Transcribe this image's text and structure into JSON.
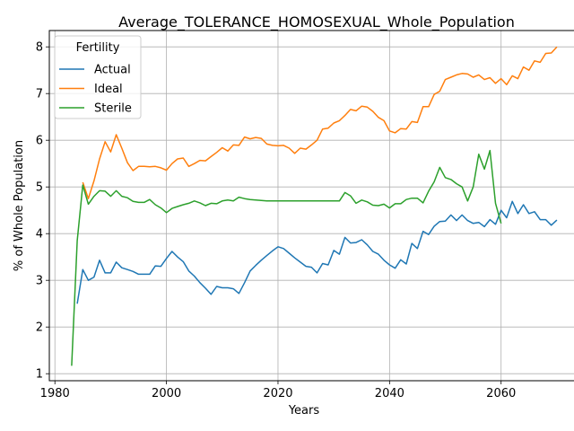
{
  "chart_data": {
    "type": "line",
    "title": "Average_TOLERANCE_HOMOSEXUAL_Whole_Population",
    "xlabel": "Years",
    "ylabel": "% of Whole Population",
    "xlim": [
      1979,
      2075
    ],
    "ylim": [
      0.85,
      8.35
    ],
    "xticks": [
      1980,
      2000,
      2020,
      2040,
      2060
    ],
    "yticks": [
      1,
      2,
      3,
      4,
      5,
      6,
      7,
      8
    ],
    "grid": true,
    "legend": {
      "title": "Fertility",
      "placement": "top-left"
    },
    "series": [
      {
        "name": "Actual",
        "color": "#1f77b4",
        "x": [
          1984,
          1985,
          1986,
          1987,
          1988,
          1989,
          1990,
          1991,
          1992,
          1993,
          1994,
          1995,
          1996,
          1997,
          1998,
          1999,
          2000,
          2001,
          2002,
          2003,
          2004,
          2005,
          2006,
          2007,
          2008,
          2009,
          2010,
          2011,
          2012,
          2013,
          2014,
          2015,
          2016,
          2017,
          2018,
          2019,
          2020,
          2021,
          2022,
          2023,
          2024,
          2025,
          2026,
          2027,
          2028,
          2029,
          2030,
          2031,
          2032,
          2033,
          2034,
          2035,
          2036,
          2037,
          2038,
          2039,
          2040,
          2041,
          2042,
          2043,
          2044,
          2045,
          2046,
          2047,
          2048,
          2049,
          2050,
          2051,
          2052,
          2053,
          2054,
          2055,
          2056,
          2057,
          2058,
          2059,
          2060,
          2061,
          2062,
          2063,
          2064,
          2065,
          2066,
          2067,
          2068,
          2069,
          2070
        ],
        "y": [
          2.5,
          3.23,
          3.0,
          3.07,
          3.43,
          3.16,
          3.16,
          3.39,
          3.27,
          3.23,
          3.19,
          3.13,
          3.13,
          3.13,
          3.31,
          3.3,
          3.47,
          3.62,
          3.5,
          3.4,
          3.2,
          3.09,
          2.95,
          2.83,
          2.7,
          2.87,
          2.84,
          2.84,
          2.82,
          2.72,
          2.95,
          3.2,
          3.32,
          3.43,
          3.53,
          3.63,
          3.72,
          3.68,
          3.58,
          3.48,
          3.39,
          3.3,
          3.28,
          3.16,
          3.36,
          3.33,
          3.64,
          3.56,
          3.92,
          3.8,
          3.81,
          3.87,
          3.76,
          3.62,
          3.56,
          3.43,
          3.33,
          3.26,
          3.44,
          3.35,
          3.79,
          3.68,
          4.05,
          3.98,
          4.16,
          4.26,
          4.27,
          4.4,
          4.28,
          4.4,
          4.28,
          4.22,
          4.24,
          4.15,
          4.3,
          4.2,
          4.5,
          4.34,
          4.69,
          4.43,
          4.62,
          4.43,
          4.47,
          4.3,
          4.3,
          4.18,
          4.29
        ]
      },
      {
        "name": "Ideal",
        "color": "#ff7f0e",
        "x": [
          1985,
          1986,
          1987,
          1988,
          1989,
          1990,
          1991,
          1992,
          1993,
          1994,
          1995,
          1996,
          1997,
          1998,
          1999,
          2000,
          2001,
          2002,
          2003,
          2004,
          2005,
          2006,
          2007,
          2008,
          2009,
          2010,
          2011,
          2012,
          2013,
          2014,
          2015,
          2016,
          2017,
          2018,
          2019,
          2020,
          2021,
          2022,
          2023,
          2024,
          2025,
          2026,
          2027,
          2028,
          2029,
          2030,
          2031,
          2032,
          2033,
          2034,
          2035,
          2036,
          2037,
          2038,
          2039,
          2040,
          2041,
          2042,
          2043,
          2044,
          2045,
          2046,
          2047,
          2048,
          2049,
          2050,
          2051,
          2052,
          2053,
          2054,
          2055,
          2056,
          2057,
          2058,
          2059,
          2060,
          2061,
          2062,
          2063,
          2064,
          2065,
          2066,
          2067,
          2068,
          2069,
          2070
        ],
        "y": [
          5.1,
          4.75,
          5.13,
          5.6,
          5.97,
          5.75,
          6.12,
          5.83,
          5.52,
          5.35,
          5.44,
          5.44,
          5.43,
          5.44,
          5.41,
          5.36,
          5.5,
          5.6,
          5.62,
          5.44,
          5.5,
          5.57,
          5.56,
          5.65,
          5.74,
          5.84,
          5.77,
          5.9,
          5.89,
          6.07,
          6.03,
          6.06,
          6.04,
          5.92,
          5.89,
          5.88,
          5.89,
          5.83,
          5.72,
          5.83,
          5.81,
          5.9,
          6.0,
          6.24,
          6.26,
          6.37,
          6.42,
          6.53,
          6.66,
          6.63,
          6.73,
          6.71,
          6.62,
          6.49,
          6.42,
          6.2,
          6.16,
          6.25,
          6.24,
          6.4,
          6.38,
          6.72,
          6.72,
          6.98,
          7.05,
          7.3,
          7.35,
          7.4,
          7.43,
          7.42,
          7.35,
          7.4,
          7.3,
          7.34,
          7.22,
          7.32,
          7.19,
          7.38,
          7.32,
          7.57,
          7.5,
          7.7,
          7.67,
          7.86,
          7.87,
          8.0
        ]
      },
      {
        "name": "Sterile",
        "color": "#2ca02c",
        "x": [
          1983,
          1984,
          1985,
          1986,
          1987,
          1988,
          1989,
          1990,
          1991,
          1992,
          1993,
          1994,
          1995,
          1996,
          1997,
          1998,
          1999,
          2000,
          2001,
          2002,
          2003,
          2004,
          2005,
          2006,
          2007,
          2008,
          2009,
          2010,
          2011,
          2012,
          2013,
          2014,
          2015,
          2016,
          2017,
          2018,
          2019,
          2020,
          2021,
          2022,
          2023,
          2024,
          2025,
          2026,
          2027,
          2028,
          2029,
          2030,
          2031,
          2032,
          2033,
          2034,
          2035,
          2036,
          2037,
          2038,
          2039,
          2040,
          2041,
          2042,
          2043,
          2044,
          2045,
          2046,
          2047,
          2048,
          2049,
          2050,
          2051,
          2052,
          2053,
          2054,
          2055,
          2056,
          2057,
          2058,
          2059,
          2060
        ],
        "y": [
          1.17,
          3.85,
          5.04,
          4.63,
          4.8,
          4.92,
          4.91,
          4.8,
          4.92,
          4.8,
          4.77,
          4.69,
          4.67,
          4.67,
          4.73,
          4.62,
          4.55,
          4.45,
          4.54,
          4.58,
          4.62,
          4.65,
          4.7,
          4.66,
          4.6,
          4.65,
          4.64,
          4.7,
          4.72,
          4.7,
          4.78,
          4.75,
          4.73,
          4.72,
          4.71,
          4.7,
          4.7,
          4.7,
          4.7,
          4.7,
          4.7,
          4.7,
          4.7,
          4.7,
          4.7,
          4.7,
          4.7,
          4.7,
          4.7,
          4.88,
          4.81,
          4.65,
          4.72,
          4.68,
          4.61,
          4.6,
          4.63,
          4.55,
          4.64,
          4.64,
          4.73,
          4.76,
          4.76,
          4.66,
          4.91,
          5.11,
          5.42,
          5.2,
          5.16,
          5.07,
          5.0,
          4.7,
          5.0,
          5.7,
          5.38,
          5.78,
          4.65,
          4.22
        ]
      }
    ]
  }
}
